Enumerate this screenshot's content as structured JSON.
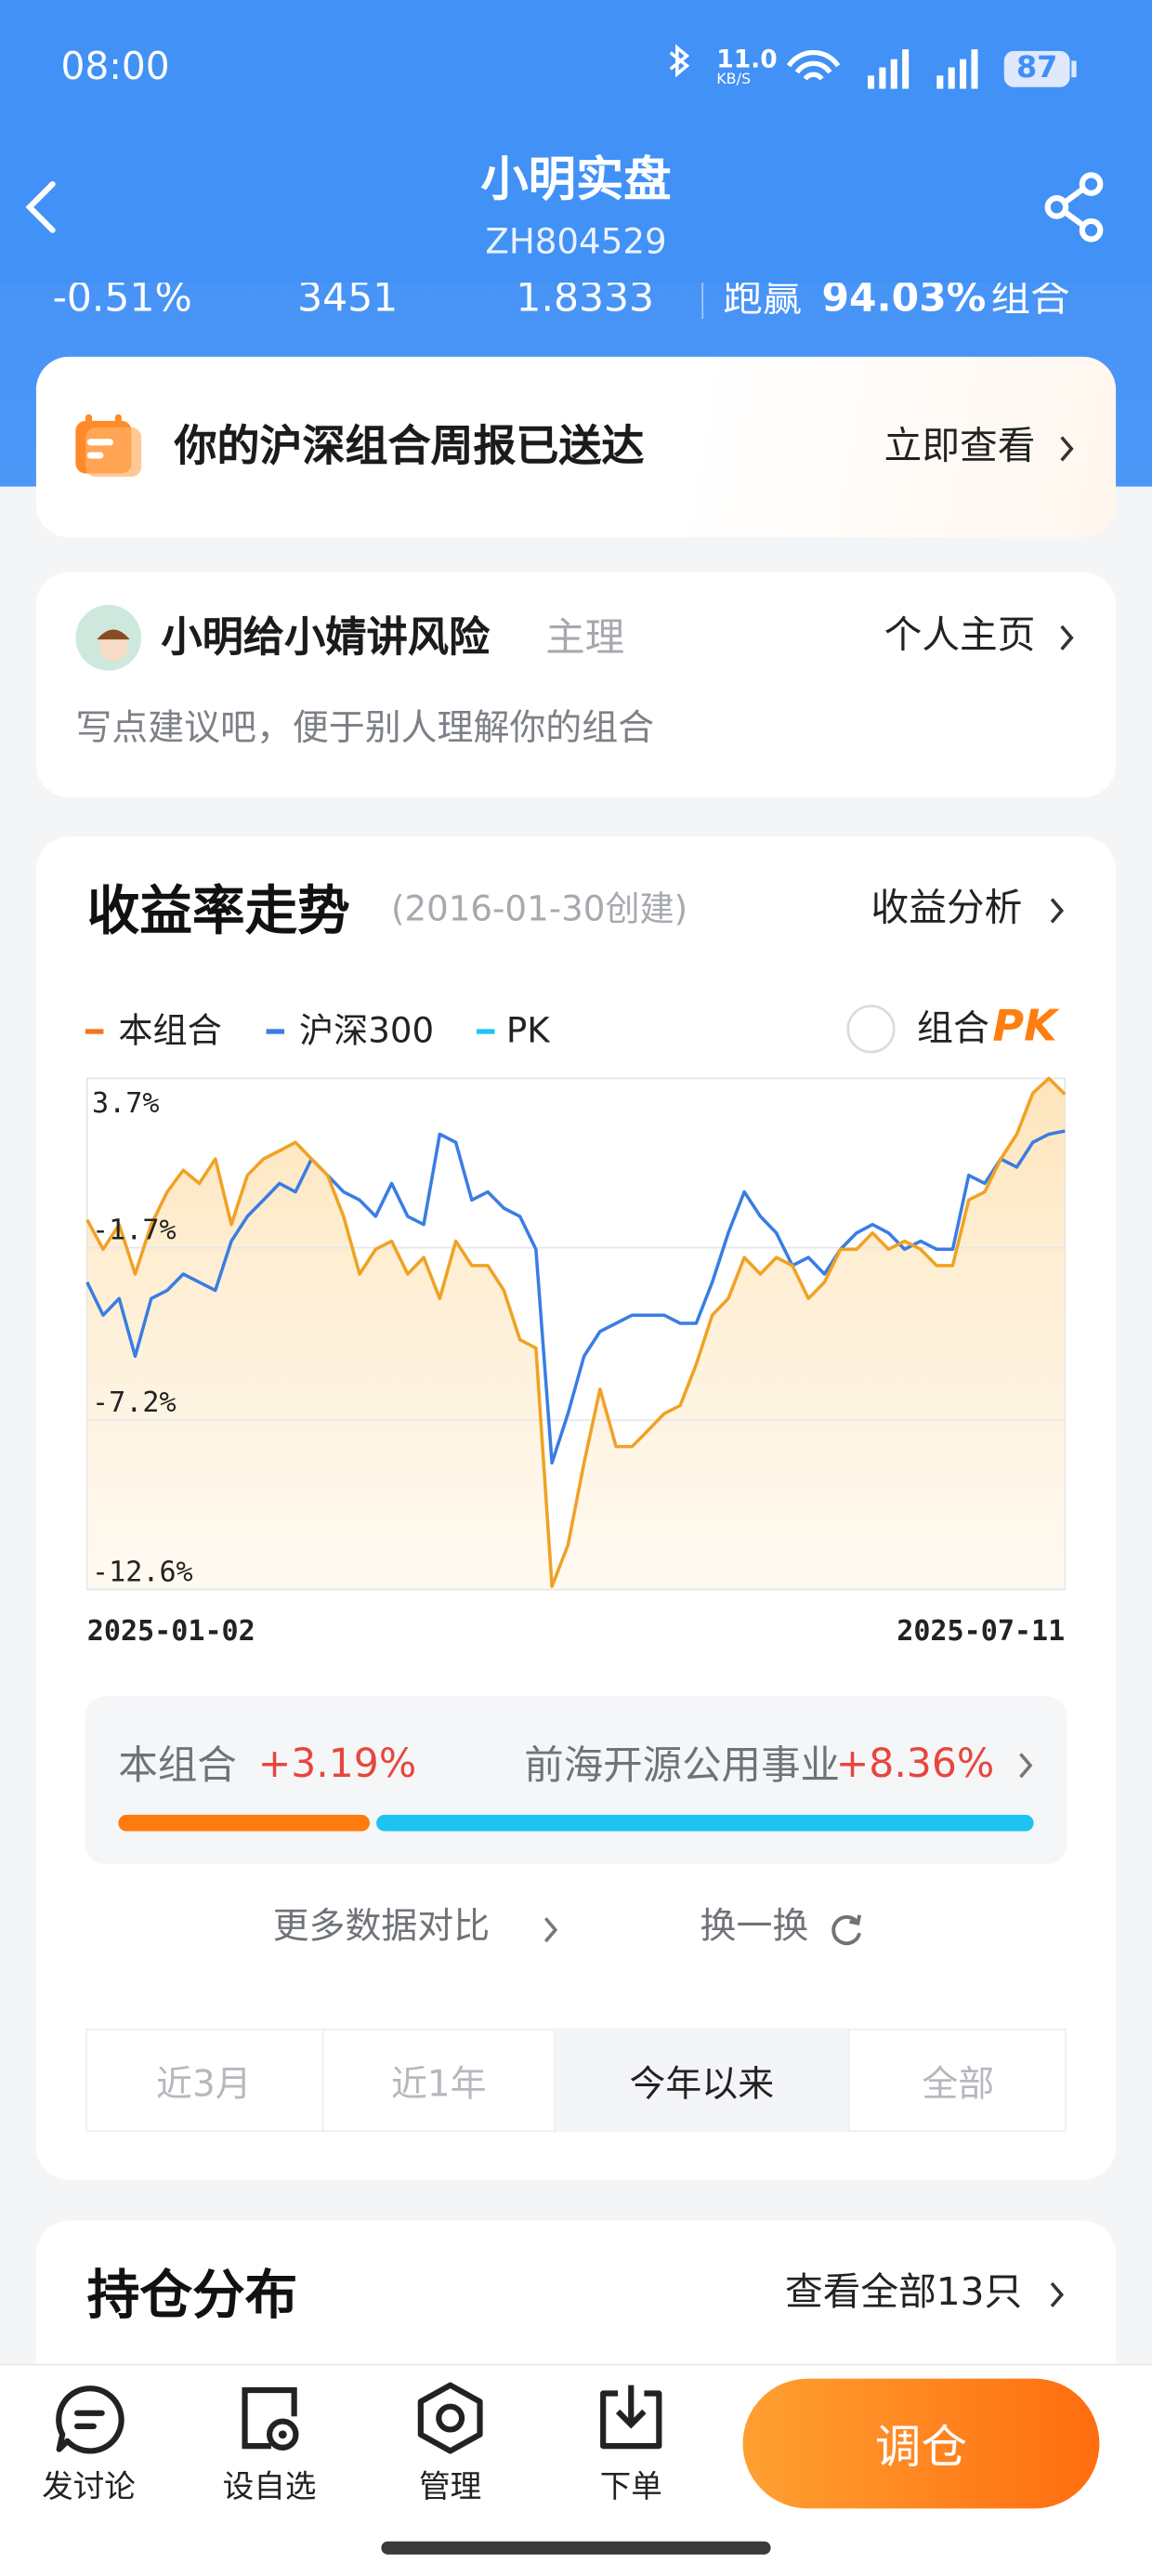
{
  "status_bar": {
    "time": "08:00",
    "speed": "11.0",
    "speed_unit": "KB/S",
    "battery": "87"
  },
  "header": {
    "title": "小明实盘",
    "subtitle": "ZH804529"
  },
  "stats": [
    "-0.51%",
    "3451",
    "1.8333"
  ],
  "beat": {
    "prefix": "跑赢",
    "value": "94.03%",
    "suffix": "组合"
  },
  "notice": {
    "text": "你的沪深组合周报已送达",
    "action": "立即查看"
  },
  "owner": {
    "name": "小明给小婧讲风险",
    "role": "主理",
    "action": "个人主页",
    "desc": "写点建议吧，便于别人理解你的组合"
  },
  "chart_card": {
    "title": "收益率走势",
    "created": "(2016-01-30创建)",
    "action": "收益分析",
    "legend_extra": {
      "name": "PK",
      "color": "#1ec3f2"
    },
    "toggle": {
      "label": "组合",
      "badge": "PK"
    }
  },
  "chart_data": {
    "type": "line",
    "categories": [
      "2025-01-02",
      null,
      null,
      null,
      null,
      null,
      null,
      null,
      null,
      null,
      null,
      null,
      null,
      null,
      null,
      null,
      null,
      null,
      null,
      null,
      null,
      null,
      null,
      null,
      null,
      null,
      null,
      null,
      null,
      null,
      null,
      null,
      null,
      null,
      null,
      null,
      null,
      null,
      null,
      null,
      null,
      null,
      null,
      null,
      null,
      null,
      null,
      null,
      null,
      null,
      null,
      null,
      null,
      null,
      null,
      null,
      null,
      null,
      null,
      null,
      null,
      "2025-07-11"
    ],
    "series": [
      {
        "name": "本组合",
        "color": "#f0a224",
        "legend_color": "#f5731b",
        "area": true,
        "values": [
          -0.81,
          -1.75,
          -0.96,
          -2.54,
          -0.96,
          0.08,
          0.77,
          0.35,
          1.13,
          -0.96,
          0.61,
          1.13,
          1.39,
          1.66,
          1.13,
          0.61,
          -0.7,
          -2.54,
          -1.75,
          -1.49,
          -2.54,
          -2.01,
          -3.32,
          -1.49,
          -2.27,
          -2.27,
          -3.06,
          -4.63,
          -4.9,
          -12.5,
          -11.18,
          -8.56,
          -6.21,
          -8.04,
          -8.04,
          -7.52,
          -6.99,
          -6.73,
          -5.42,
          -3.85,
          -3.32,
          -2.01,
          -2.54,
          -2.01,
          -2.27,
          -3.32,
          -2.8,
          -1.75,
          -1.75,
          -1.23,
          -1.75,
          -1.49,
          -1.75,
          -2.27,
          -2.27,
          -0.18,
          0.08,
          1.13,
          1.92,
          3.23,
          3.7,
          3.19
        ]
      },
      {
        "name": "沪深300",
        "color": "#3a7de3",
        "legend_color": "#3a7de3",
        "values": [
          -2.8,
          -3.85,
          -3.32,
          -5.16,
          -3.32,
          -3.06,
          -2.54,
          -2.8,
          -3.06,
          -1.49,
          -0.7,
          -0.18,
          0.35,
          0.08,
          1.13,
          0.61,
          0.08,
          -0.18,
          -0.7,
          0.35,
          -0.7,
          -0.96,
          1.92,
          1.66,
          -0.18,
          0.08,
          -0.44,
          -0.7,
          -1.75,
          -8.56,
          -6.99,
          -5.16,
          -4.37,
          -4.11,
          -3.85,
          -3.85,
          -3.85,
          -4.11,
          -4.11,
          -2.8,
          -1.23,
          0.08,
          -0.7,
          -1.23,
          -2.27,
          -2.01,
          -2.54,
          -1.75,
          -1.23,
          -0.96,
          -1.23,
          -1.75,
          -1.49,
          -1.75,
          -1.75,
          0.61,
          0.35,
          1.13,
          0.87,
          1.66,
          1.92,
          2.02
        ]
      }
    ],
    "ylim": [
      -12.6,
      3.7
    ],
    "yticks": [
      {
        "value": 3.7,
        "label": "3.7%"
      },
      {
        "value": -1.7,
        "label": "-1.7%"
      },
      {
        "value": -7.2,
        "label": "-7.2%"
      },
      {
        "value": -12.6,
        "label": "-12.6%"
      }
    ],
    "grid": true
  },
  "compare": {
    "items": [
      {
        "name": "本组合",
        "value": 3.19,
        "label": "+3.19%",
        "color": "#ff7a0f"
      },
      {
        "name": "前海开源公用事业",
        "value": 8.36,
        "label": "+8.36%",
        "color": "#1ec3f2"
      }
    ]
  },
  "links": {
    "more": "更多数据对比",
    "swap": "换一换"
  },
  "periods": {
    "items": [
      "近3月",
      "近1年",
      "今年以来",
      "全部"
    ],
    "selected": 2
  },
  "holdings": {
    "title": "持仓分布",
    "action": "查看全部13只"
  },
  "nav": {
    "items": [
      "发讨论",
      "设自选",
      "管理",
      "下单"
    ],
    "button": "调仓"
  }
}
